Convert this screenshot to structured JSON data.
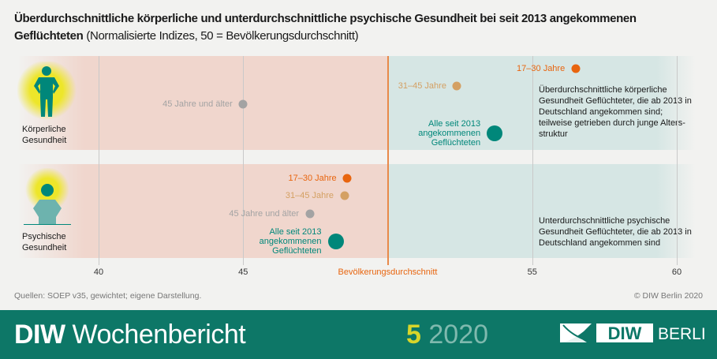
{
  "title": {
    "bold": "Überdurchschnittliche körperliche und unterdurchschnittliche psychische Gesundheit bei seit 2013 angekommenen Geflüchteten",
    "normal": "(Normalisierte Indizes, 50 = Bevölkerungsdurchschnitt)"
  },
  "chart_data": {
    "type": "scatter",
    "xlim": [
      37.3,
      60.6
    ],
    "xticks": [
      40,
      45,
      55,
      60
    ],
    "reference": {
      "value": 50,
      "label": "Bevölkerungsdurchschnitt"
    },
    "grid": true,
    "rows": [
      {
        "label": "Körperliche\nGesundheit",
        "note_bold": "Überdurchschnittliche körperliche Gesundheit",
        "note": "Überdurchschnittliche körperliche Gesundheit Geflüchteter, die ab 2013 in Deutschland angekommen sind; teilweise getrieben durch junge Alters-struktur",
        "points": [
          {
            "name": "17–30 Jahre",
            "value": 56.5,
            "color": "#e8650f"
          },
          {
            "name": "31–45 Jahre",
            "value": 52.4,
            "color": "#d4a063"
          },
          {
            "name": "45 Jahre und älter",
            "value": 45.0,
            "color": "#a3a3a3"
          },
          {
            "name": "Alle seit 2013\nangekommenen\nGeflüchteten",
            "value": 53.7,
            "color": "#00877a"
          }
        ]
      },
      {
        "label": "Psychische\nGesundheit",
        "note": "Unterdurchschnittliche psychische Gesundheit Geflüchteter, die ab 2013 in Deutschland angekommen sind",
        "points": [
          {
            "name": "17–30 Jahre",
            "value": 48.6,
            "color": "#e8650f"
          },
          {
            "name": "31–45 Jahre",
            "value": 48.5,
            "color": "#d4a063"
          },
          {
            "name": "45 Jahre und älter",
            "value": 47.3,
            "color": "#a3a3a3"
          },
          {
            "name": "Alle seit 2013\nangekommenen\nGeflüchteten",
            "value": 48.2,
            "color": "#00877a"
          }
        ]
      }
    ]
  },
  "colors": {
    "below": "#f0d6cd",
    "above": "#d6e6e4",
    "accent": "#0d7767"
  },
  "source": "Quellen: SOEP v35, gewichtet; eigene Darstellung.",
  "copyright": "© DIW Berlin 2020",
  "footer": {
    "brand_bold": "DIW",
    "brand": "Wochenbericht",
    "issue": "5",
    "year": "2020",
    "logo": "DIW BERLIN"
  }
}
